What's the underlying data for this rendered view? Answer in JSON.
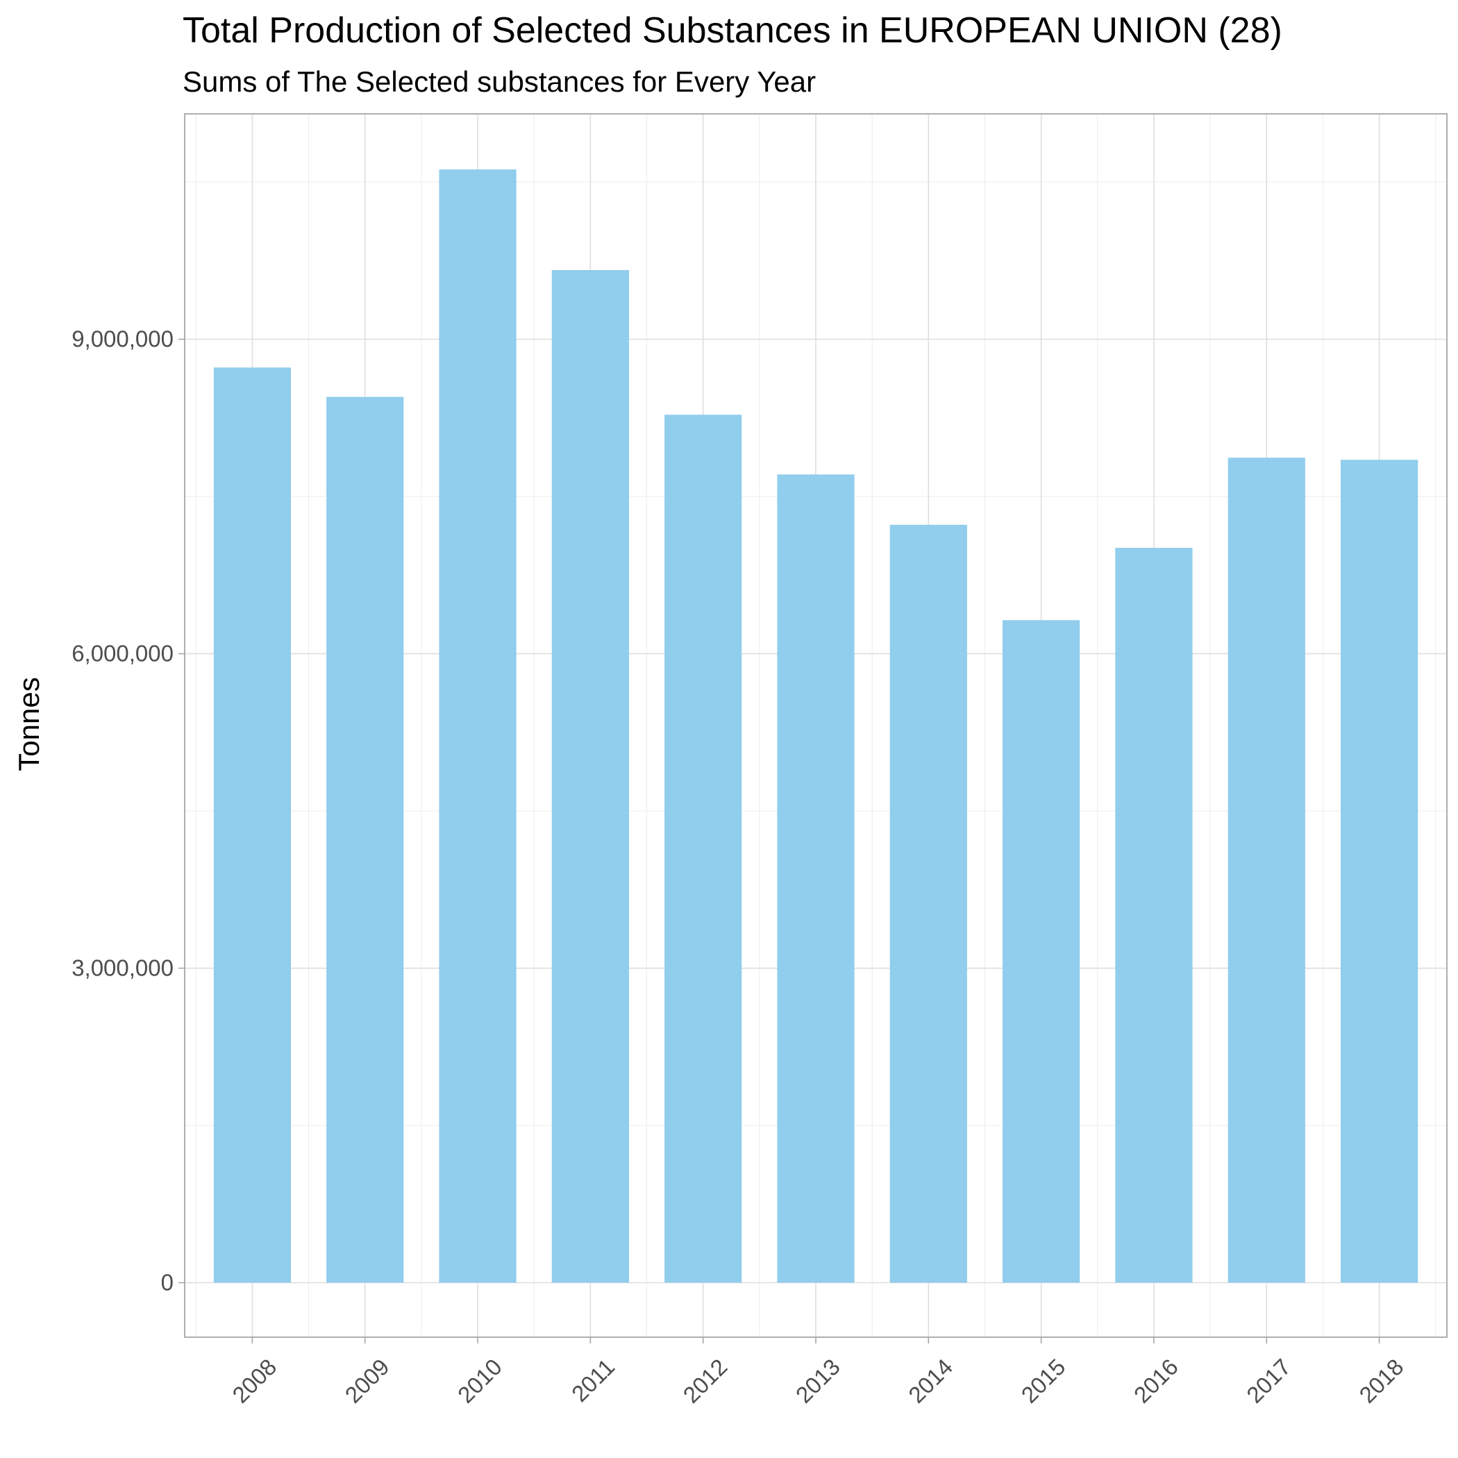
{
  "chart_data": {
    "type": "bar",
    "title": "Total Production of Selected Substances in EUROPEAN UNION (28)",
    "subtitle": "Sums of The Selected substances for Every Year",
    "xlabel": "",
    "ylabel": "Tonnes",
    "categories": [
      "2008",
      "2009",
      "2010",
      "2011",
      "2012",
      "2013",
      "2014",
      "2015",
      "2016",
      "2017",
      "2018"
    ],
    "values": [
      8730000,
      8450000,
      10620000,
      9660000,
      8280000,
      7710000,
      7230000,
      6320000,
      7010000,
      7870000,
      7850000
    ],
    "ylim": [
      -520000,
      11150000
    ],
    "yticks": [
      0,
      3000000,
      6000000,
      9000000
    ],
    "ytick_labels": [
      "0",
      "3,000,000",
      "6,000,000",
      "9,000,000"
    ],
    "bar_color": "#91cdec",
    "grid": true,
    "legend": "none"
  }
}
